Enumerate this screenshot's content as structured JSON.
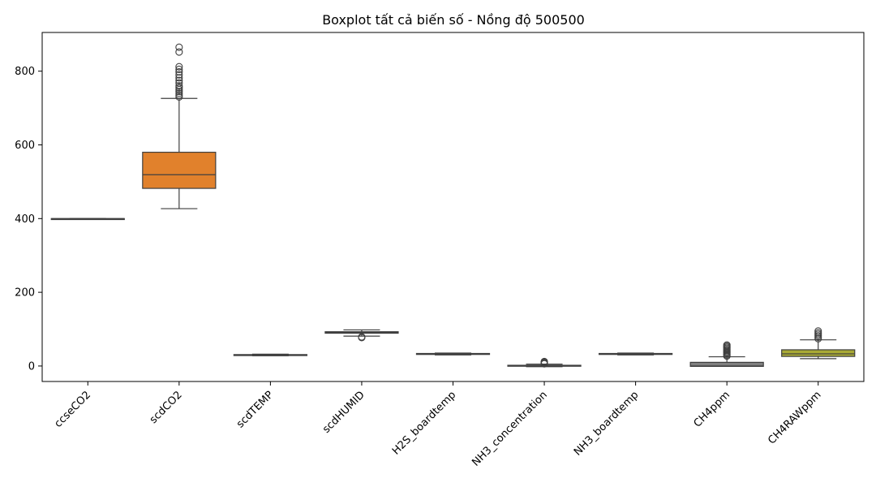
{
  "chart_data": {
    "type": "boxplot",
    "title": "Boxplot tất cả biến số - Nồng độ 500500",
    "xlabel": "",
    "ylabel": "",
    "ylim": [
      -42,
      905
    ],
    "yticks": [
      0,
      200,
      400,
      600,
      800
    ],
    "grid": false,
    "legend": "none",
    "categories": [
      "ccseCO2",
      "scdCO2",
      "scdTEMP",
      "scdHUMID",
      "H2S_boardtemp",
      "NH3_concentration",
      "NH3_boardtemp",
      "CH4ppm",
      "CH4RAWppm"
    ],
    "boxes": [
      {
        "name": "ccseCO2",
        "color": "#3274a1",
        "whisker_low": 400,
        "q1": 400,
        "median": 400,
        "q3": 400,
        "whisker_high": 400,
        "outliers": []
      },
      {
        "name": "scdCO2",
        "color": "#e1812c",
        "whisker_low": 427,
        "q1": 482,
        "median": 519,
        "q3": 580,
        "whisker_high": 726,
        "outliers": [
          730,
          735,
          740,
          745,
          750,
          755,
          760,
          768,
          775,
          782,
          790,
          798,
          805,
          812,
          852,
          865
        ]
      },
      {
        "name": "scdTEMP",
        "color": "#3a923a",
        "whisker_low": 28,
        "q1": 29,
        "median": 30,
        "q3": 31,
        "whisker_high": 32,
        "outliers": []
      },
      {
        "name": "scdHUMID",
        "color": "#c03d3e",
        "whisker_low": 81,
        "q1": 89,
        "median": 91,
        "q3": 93,
        "whisker_high": 98,
        "outliers": [
          77,
          79
        ]
      },
      {
        "name": "H2S_boardtemp",
        "color": "#9372b2",
        "whisker_low": 30,
        "q1": 32,
        "median": 33,
        "q3": 34,
        "whisker_high": 35,
        "outliers": []
      },
      {
        "name": "NH3_concentration",
        "color": "#845b53",
        "whisker_low": -2,
        "q1": 0,
        "median": 1,
        "q3": 2,
        "whisker_high": 5,
        "outliers": [
          6,
          8,
          10,
          12
        ]
      },
      {
        "name": "NH3_boardtemp",
        "color": "#d684bd",
        "whisker_low": 30,
        "q1": 32,
        "median": 33,
        "q3": 34,
        "whisker_high": 35,
        "outliers": []
      },
      {
        "name": "CH4ppm",
        "color": "#7f7f7f",
        "whisker_low": -1,
        "q1": -1,
        "median": 0,
        "q3": 10,
        "whisker_high": 25,
        "outliers": [
          27,
          30,
          33,
          36,
          39,
          42,
          45,
          48,
          51,
          54,
          57
        ]
      },
      {
        "name": "CH4RAWppm",
        "color": "#a9aa35",
        "whisker_low": 20,
        "q1": 26,
        "median": 33,
        "q3": 44,
        "whisker_high": 71,
        "outliers": [
          74,
          78,
          82,
          86,
          90,
          95
        ]
      }
    ]
  }
}
